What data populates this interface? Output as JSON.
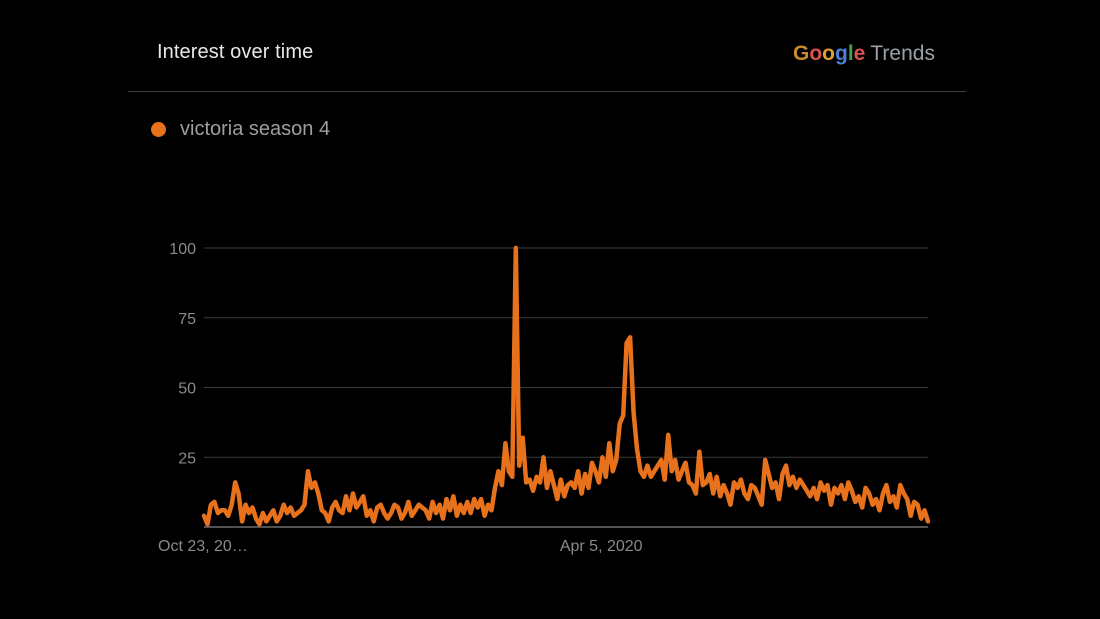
{
  "header": {
    "title": "Interest over time",
    "brand": {
      "letters": [
        {
          "char": "G",
          "color": "#c98a2e"
        },
        {
          "char": "o",
          "color": "#d9534f"
        },
        {
          "char": "o",
          "color": "#e0a030"
        },
        {
          "char": "g",
          "color": "#4a80d8"
        },
        {
          "char": "l",
          "color": "#3fa356"
        },
        {
          "char": "e",
          "color": "#d9534f"
        }
      ],
      "product": "Trends"
    }
  },
  "colors": {
    "series": "#e8711c",
    "grid": "#3a3a3a",
    "axis": "#6e6e6e",
    "tick_text": "#8a8a8a",
    "background": "#000000"
  },
  "chart_data": {
    "type": "line",
    "series": [
      {
        "name": "victoria season 4",
        "values": [
          4,
          1,
          8,
          9,
          5,
          6,
          6,
          4,
          8,
          16,
          12,
          2,
          8,
          5,
          7,
          3,
          1,
          5,
          2,
          4,
          6,
          2,
          4,
          8,
          5,
          7,
          4,
          5,
          6,
          8,
          20,
          14,
          16,
          12,
          6,
          5,
          2,
          7,
          9,
          6,
          5,
          11,
          6,
          12,
          7,
          9,
          11,
          4,
          6,
          2,
          7,
          8,
          5,
          3,
          5,
          8,
          7,
          3,
          5,
          9,
          4,
          6,
          8,
          7,
          6,
          3,
          9,
          5,
          8,
          3,
          10,
          6,
          11,
          4,
          8,
          5,
          9,
          5,
          10,
          7,
          10,
          4,
          8,
          6,
          14,
          20,
          15,
          30,
          20,
          18,
          100,
          22,
          32,
          16,
          17,
          13,
          18,
          16,
          25,
          14,
          20,
          15,
          10,
          17,
          11,
          15,
          16,
          14,
          20,
          12,
          19,
          14,
          23,
          20,
          16,
          25,
          18,
          30,
          20,
          24,
          37,
          40,
          66,
          68,
          41,
          28,
          20,
          18,
          22,
          18,
          20,
          22,
          24,
          17,
          33,
          20,
          24,
          17,
          20,
          23,
          16,
          15,
          12,
          27,
          15,
          16,
          19,
          12,
          18,
          11,
          15,
          12,
          8,
          16,
          14,
          17,
          12,
          10,
          15,
          14,
          11,
          8,
          24,
          19,
          14,
          16,
          10,
          19,
          22,
          15,
          18,
          14,
          17,
          15,
          13,
          11,
          14,
          10,
          16,
          13,
          15,
          8,
          14,
          12,
          15,
          10,
          16,
          13,
          9,
          11,
          7,
          14,
          12,
          8,
          10,
          6,
          12,
          15,
          9,
          11,
          7,
          15,
          12,
          10,
          4,
          9,
          8,
          3,
          6,
          2
        ]
      }
    ],
    "x_ticks": [
      {
        "index": 0,
        "label": "Oct 23, 20…"
      },
      {
        "index": 116,
        "label": "Apr 5, 2020"
      }
    ],
    "y_ticks": [
      100,
      75,
      50,
      25
    ],
    "ylim": [
      0,
      100
    ],
    "grid": true,
    "legend_position": "top-left"
  }
}
